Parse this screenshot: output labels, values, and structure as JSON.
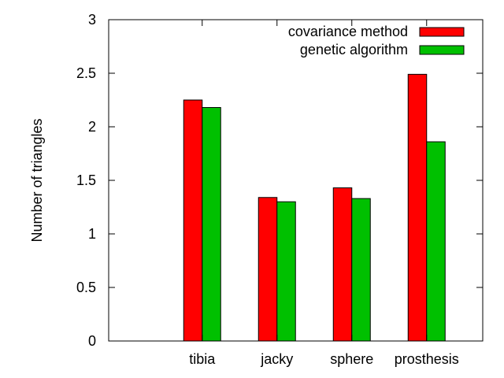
{
  "chart_data": {
    "type": "bar",
    "title": "",
    "xlabel": "",
    "ylabel": "Number of triangles",
    "ylim": [
      0,
      3
    ],
    "yticks": [
      "0",
      "0.5",
      "1",
      "1.5",
      "2",
      "2.5",
      "3"
    ],
    "categories": [
      "tibia",
      "jacky",
      "sphere",
      "prosthesis"
    ],
    "series": [
      {
        "name": "covariance method",
        "color": "#ff0000",
        "values": [
          2.25,
          1.34,
          1.43,
          2.49
        ]
      },
      {
        "name": "genetic algorithm",
        "color": "#00c000",
        "values": [
          2.18,
          1.3,
          1.33,
          1.86
        ]
      }
    ],
    "legend_position": "top-right",
    "grid": false
  }
}
